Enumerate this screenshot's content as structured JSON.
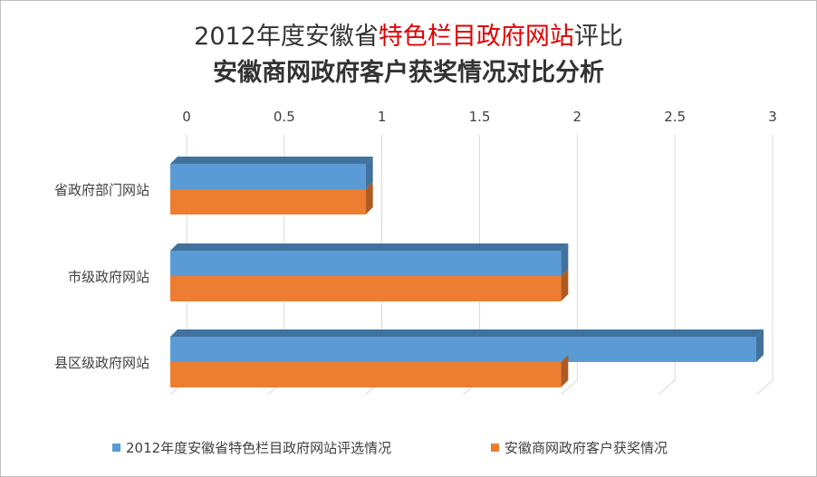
{
  "title": {
    "line1_parts": [
      "2012年度安徽省",
      "特色栏目政府网站",
      "评比"
    ],
    "line2": "安徽商网政府客户获奖情况对比分析"
  },
  "colors": {
    "series1": "#5b9bd5",
    "series1_dark": "#41729e",
    "series2": "#ed7d31",
    "series2_dark": "#ae5a23",
    "highlight": "#e00000"
  },
  "chart_data": {
    "type": "bar",
    "orientation": "horizontal",
    "three_d": true,
    "title": "2012年度安徽省特色栏目政府网站评比 安徽商网政府客户获奖情况对比分析",
    "categories": [
      "省政府部门网站",
      "市级政府网站",
      "县区级政府网站"
    ],
    "series": [
      {
        "name": "2012年度安徽省特色栏目政府网站评选情况",
        "values": [
          1,
          2,
          3
        ]
      },
      {
        "name": "安徽商网政府客户获奖情况",
        "values": [
          1,
          2,
          2
        ]
      }
    ],
    "xlim": [
      0,
      3
    ],
    "ticks": [
      "0",
      "0.5",
      "1",
      "1.5",
      "2",
      "2.5",
      "3"
    ],
    "tick_values": [
      0,
      0.5,
      1,
      1.5,
      2,
      2.5,
      3
    ],
    "axis_position": "top",
    "grid": true,
    "legend_position": "bottom"
  }
}
